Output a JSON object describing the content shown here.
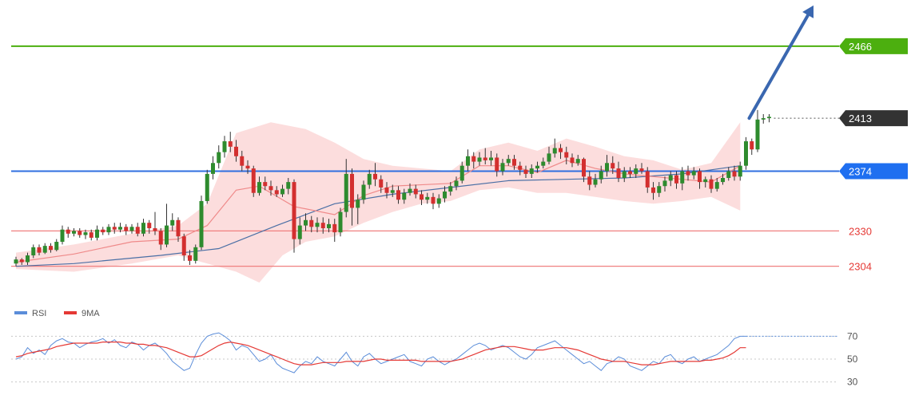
{
  "chart_data": {
    "type": "candlestick",
    "ylim": [
      2285,
      2500
    ],
    "levels": [
      {
        "name": "resistance-green",
        "value": 2466,
        "label": "2466",
        "color": "#4caf0f",
        "badge_color": "#4caf0f",
        "text_color": "#ffffff",
        "style": "solid"
      },
      {
        "name": "current-price",
        "value": 2413,
        "label": "2413",
        "color": "#555555",
        "badge_color": "#333333",
        "text_color": "#ffffff",
        "style": "dotted"
      },
      {
        "name": "pivot-blue",
        "value": 2374,
        "label": "2374",
        "color": "#2f6fe0",
        "badge_color": "#1f6ff0",
        "text_color": "#ffffff",
        "style": "solid"
      },
      {
        "name": "support-1",
        "value": 2330,
        "label": "2330",
        "color": "#f08080",
        "text_color": "#e53935",
        "style": "solid"
      },
      {
        "name": "support-2",
        "value": 2304,
        "label": "2304",
        "color": "#f08080",
        "text_color": "#e53935",
        "style": "solid"
      }
    ],
    "colors": {
      "up": "#2e8b2e",
      "down": "#d32f2f",
      "wick": "#333333",
      "band": "#fbd4d4",
      "ma_slow": "#4a6fa5",
      "ma_fast": "#ef8a8a",
      "arrow": "#3a67b0"
    },
    "candles": [
      [
        2306,
        2309,
        2304,
        2311
      ],
      [
        2309,
        2307,
        2305,
        2310
      ],
      [
        2307,
        2312,
        2305,
        2314
      ],
      [
        2312,
        2318,
        2310,
        2320
      ],
      [
        2318,
        2314,
        2312,
        2320
      ],
      [
        2314,
        2319,
        2313,
        2321
      ],
      [
        2319,
        2316,
        2314,
        2321
      ],
      [
        2316,
        2322,
        2315,
        2324
      ],
      [
        2322,
        2331,
        2320,
        2334
      ],
      [
        2331,
        2328,
        2325,
        2333
      ],
      [
        2328,
        2330,
        2326,
        2332
      ],
      [
        2330,
        2327,
        2325,
        2332
      ],
      [
        2327,
        2329,
        2324,
        2331
      ],
      [
        2329,
        2325,
        2323,
        2331
      ],
      [
        2325,
        2331,
        2323,
        2334
      ],
      [
        2331,
        2329,
        2327,
        2333
      ],
      [
        2329,
        2333,
        2327,
        2335
      ],
      [
        2333,
        2331,
        2328,
        2336
      ],
      [
        2331,
        2333,
        2329,
        2336
      ],
      [
        2333,
        2330,
        2327,
        2335
      ],
      [
        2330,
        2333,
        2328,
        2335
      ],
      [
        2333,
        2328,
        2326,
        2336
      ],
      [
        2328,
        2336,
        2326,
        2339
      ],
      [
        2336,
        2332,
        2328,
        2338
      ],
      [
        2332,
        2330,
        2327,
        2344
      ],
      [
        2330,
        2320,
        2316,
        2332
      ],
      [
        2320,
        2334,
        2318,
        2350
      ],
      [
        2334,
        2338,
        2330,
        2343
      ],
      [
        2338,
        2326,
        2322,
        2340
      ],
      [
        2326,
        2312,
        2308,
        2328
      ],
      [
        2312,
        2308,
        2305,
        2316
      ],
      [
        2308,
        2318,
        2306,
        2320
      ],
      [
        2318,
        2352,
        2316,
        2356
      ],
      [
        2352,
        2372,
        2350,
        2375
      ],
      [
        2372,
        2380,
        2368,
        2385
      ],
      [
        2380,
        2388,
        2376,
        2393
      ],
      [
        2388,
        2396,
        2384,
        2400
      ],
      [
        2396,
        2392,
        2388,
        2403
      ],
      [
        2392,
        2385,
        2381,
        2397
      ],
      [
        2385,
        2378,
        2374,
        2389
      ],
      [
        2378,
        2376,
        2372,
        2382
      ],
      [
        2376,
        2358,
        2355,
        2378
      ],
      [
        2358,
        2366,
        2356,
        2370
      ],
      [
        2366,
        2363,
        2360,
        2370
      ],
      [
        2363,
        2360,
        2356,
        2367
      ],
      [
        2360,
        2357,
        2355,
        2363
      ],
      [
        2357,
        2361,
        2355,
        2364
      ],
      [
        2361,
        2366,
        2357,
        2369
      ],
      [
        2366,
        2324,
        2314,
        2368
      ],
      [
        2324,
        2334,
        2320,
        2340
      ],
      [
        2334,
        2338,
        2330,
        2343
      ],
      [
        2338,
        2333,
        2329,
        2341
      ],
      [
        2333,
        2336,
        2329,
        2340
      ],
      [
        2336,
        2332,
        2328,
        2340
      ],
      [
        2332,
        2335,
        2329,
        2339
      ],
      [
        2335,
        2329,
        2322,
        2339
      ],
      [
        2329,
        2344,
        2326,
        2347
      ],
      [
        2344,
        2372,
        2340,
        2383
      ],
      [
        2372,
        2347,
        2334,
        2376
      ],
      [
        2347,
        2353,
        2335,
        2357
      ],
      [
        2353,
        2364,
        2350,
        2367
      ],
      [
        2364,
        2372,
        2361,
        2375
      ],
      [
        2372,
        2368,
        2363,
        2380
      ],
      [
        2368,
        2362,
        2358,
        2371
      ],
      [
        2362,
        2358,
        2354,
        2366
      ],
      [
        2358,
        2360,
        2355,
        2364
      ],
      [
        2360,
        2353,
        2350,
        2363
      ],
      [
        2353,
        2358,
        2350,
        2361
      ],
      [
        2358,
        2361,
        2356,
        2365
      ],
      [
        2361,
        2357,
        2354,
        2364
      ],
      [
        2357,
        2353,
        2349,
        2360
      ],
      [
        2353,
        2355,
        2350,
        2358
      ],
      [
        2355,
        2350,
        2346,
        2358
      ],
      [
        2350,
        2354,
        2347,
        2357
      ],
      [
        2354,
        2359,
        2351,
        2363
      ],
      [
        2359,
        2363,
        2356,
        2366
      ],
      [
        2363,
        2367,
        2360,
        2370
      ],
      [
        2367,
        2378,
        2365,
        2381
      ],
      [
        2378,
        2385,
        2374,
        2390
      ],
      [
        2385,
        2381,
        2376,
        2388
      ],
      [
        2381,
        2384,
        2378,
        2388
      ],
      [
        2384,
        2382,
        2379,
        2391
      ],
      [
        2382,
        2384,
        2378,
        2389
      ],
      [
        2384,
        2374,
        2370,
        2387
      ],
      [
        2374,
        2380,
        2371,
        2383
      ],
      [
        2380,
        2383,
        2378,
        2386
      ],
      [
        2383,
        2378,
        2375,
        2386
      ],
      [
        2378,
        2375,
        2371,
        2381
      ],
      [
        2375,
        2372,
        2369,
        2378
      ],
      [
        2372,
        2376,
        2369,
        2379
      ],
      [
        2376,
        2378,
        2373,
        2381
      ],
      [
        2378,
        2381,
        2376,
        2384
      ],
      [
        2381,
        2387,
        2379,
        2392
      ],
      [
        2387,
        2391,
        2384,
        2398
      ],
      [
        2391,
        2388,
        2383,
        2394
      ],
      [
        2388,
        2384,
        2379,
        2392
      ],
      [
        2384,
        2380,
        2377,
        2387
      ],
      [
        2380,
        2383,
        2378,
        2386
      ],
      [
        2383,
        2370,
        2366,
        2384
      ],
      [
        2370,
        2364,
        2360,
        2374
      ],
      [
        2364,
        2368,
        2362,
        2372
      ],
      [
        2368,
        2374,
        2365,
        2378
      ],
      [
        2374,
        2380,
        2370,
        2386
      ],
      [
        2380,
        2376,
        2372,
        2385
      ],
      [
        2376,
        2369,
        2366,
        2381
      ],
      [
        2369,
        2374,
        2366,
        2377
      ],
      [
        2374,
        2372,
        2369,
        2377
      ],
      [
        2372,
        2376,
        2369,
        2379
      ],
      [
        2376,
        2374,
        2372,
        2380
      ],
      [
        2374,
        2362,
        2358,
        2377
      ],
      [
        2362,
        2358,
        2353,
        2366
      ],
      [
        2358,
        2363,
        2355,
        2366
      ],
      [
        2363,
        2367,
        2359,
        2370
      ],
      [
        2367,
        2371,
        2363,
        2374
      ],
      [
        2371,
        2365,
        2361,
        2374
      ],
      [
        2365,
        2374,
        2360,
        2377
      ],
      [
        2374,
        2371,
        2367,
        2378
      ],
      [
        2371,
        2374,
        2368,
        2377
      ],
      [
        2374,
        2366,
        2361,
        2376
      ],
      [
        2366,
        2368,
        2362,
        2370
      ],
      [
        2368,
        2361,
        2358,
        2371
      ],
      [
        2361,
        2366,
        2359,
        2369
      ],
      [
        2366,
        2369,
        2364,
        2372
      ],
      [
        2369,
        2374,
        2367,
        2377
      ],
      [
        2374,
        2370,
        2367,
        2378
      ],
      [
        2370,
        2378,
        2367,
        2381
      ],
      [
        2378,
        2396,
        2375,
        2399
      ],
      [
        2396,
        2390,
        2386,
        2398
      ],
      [
        2390,
        2412,
        2388,
        2419
      ],
      [
        2412,
        2413,
        2409,
        2416
      ],
      [
        2413,
        2414,
        2410,
        2416
      ]
    ],
    "ma_slow": [
      [
        0,
        2304
      ],
      [
        10,
        2306
      ],
      [
        25,
        2312
      ],
      [
        35,
        2317
      ],
      [
        45,
        2334
      ],
      [
        55,
        2350
      ],
      [
        65,
        2357
      ],
      [
        75,
        2362
      ],
      [
        85,
        2367
      ],
      [
        95,
        2368
      ],
      [
        105,
        2369
      ],
      [
        115,
        2372
      ],
      [
        125,
        2378
      ]
    ],
    "ma_fast": [
      [
        0,
        2307
      ],
      [
        10,
        2313
      ],
      [
        20,
        2322
      ],
      [
        28,
        2324
      ],
      [
        33,
        2334
      ],
      [
        38,
        2360
      ],
      [
        42,
        2363
      ],
      [
        48,
        2348
      ],
      [
        55,
        2342
      ],
      [
        60,
        2356
      ],
      [
        65,
        2363
      ],
      [
        75,
        2365
      ],
      [
        80,
        2378
      ],
      [
        85,
        2378
      ],
      [
        90,
        2373
      ],
      [
        95,
        2382
      ],
      [
        100,
        2376
      ],
      [
        105,
        2372
      ],
      [
        110,
        2370
      ],
      [
        115,
        2368
      ],
      [
        120,
        2366
      ],
      [
        125,
        2378
      ]
    ],
    "band": {
      "upper": [
        [
          0,
          2314
        ],
        [
          10,
          2320
        ],
        [
          20,
          2328
        ],
        [
          28,
          2334
        ],
        [
          33,
          2350
        ],
        [
          38,
          2402
        ],
        [
          44,
          2410
        ],
        [
          50,
          2405
        ],
        [
          55,
          2395
        ],
        [
          60,
          2383
        ],
        [
          65,
          2378
        ],
        [
          75,
          2374
        ],
        [
          80,
          2390
        ],
        [
          85,
          2395
        ],
        [
          90,
          2389
        ],
        [
          95,
          2398
        ],
        [
          100,
          2392
        ],
        [
          105,
          2385
        ],
        [
          110,
          2382
        ],
        [
          115,
          2375
        ],
        [
          120,
          2380
        ],
        [
          125,
          2410
        ]
      ],
      "lower": [
        [
          0,
          2302
        ],
        [
          10,
          2300
        ],
        [
          20,
          2306
        ],
        [
          28,
          2312
        ],
        [
          33,
          2306
        ],
        [
          38,
          2300
        ],
        [
          42,
          2292
        ],
        [
          46,
          2312
        ],
        [
          50,
          2322
        ],
        [
          55,
          2326
        ],
        [
          60,
          2336
        ],
        [
          65,
          2344
        ],
        [
          70,
          2350
        ],
        [
          75,
          2352
        ],
        [
          80,
          2360
        ],
        [
          85,
          2362
        ],
        [
          90,
          2358
        ],
        [
          95,
          2358
        ],
        [
          100,
          2355
        ],
        [
          105,
          2352
        ],
        [
          110,
          2350
        ],
        [
          115,
          2352
        ],
        [
          120,
          2355
        ],
        [
          125,
          2345
        ]
      ]
    },
    "arrow": {
      "from": [
        126,
        2413
      ],
      "to": [
        136,
        2496
      ]
    },
    "legend": [
      {
        "label": "RSI",
        "color": "#5b8dd9"
      },
      {
        "label": "9MA",
        "color": "#e53935"
      }
    ],
    "rsi": {
      "ylim": [
        22,
        78
      ],
      "ticks": [
        "70",
        "50",
        "30"
      ],
      "tick_values": [
        70,
        50,
        30
      ],
      "last_value": 70,
      "rsi_values": [
        50,
        52,
        60,
        55,
        58,
        54,
        62,
        66,
        68,
        65,
        64,
        60,
        63,
        65,
        66,
        68,
        64,
        67,
        62,
        60,
        65,
        63,
        58,
        62,
        64,
        60,
        55,
        48,
        44,
        40,
        42,
        54,
        64,
        70,
        72,
        73,
        70,
        66,
        58,
        62,
        60,
        54,
        48,
        50,
        54,
        46,
        42,
        40,
        38,
        44,
        48,
        46,
        52,
        48,
        46,
        44,
        50,
        56,
        48,
        44,
        52,
        55,
        50,
        46,
        48,
        50,
        52,
        54,
        48,
        46,
        44,
        50,
        52,
        48,
        45,
        48,
        50,
        54,
        58,
        62,
        64,
        62,
        58,
        60,
        62,
        60,
        56,
        52,
        50,
        54,
        60,
        62,
        64,
        66,
        62,
        58,
        54,
        50,
        46,
        48,
        44,
        40,
        46,
        48,
        52,
        50,
        44,
        42,
        40,
        44,
        48,
        46,
        52,
        54,
        48,
        46,
        50,
        52,
        48,
        50,
        52,
        54,
        58,
        62,
        68,
        70,
        70
      ],
      "ma_values": [
        52,
        53,
        55,
        56,
        57,
        58,
        59,
        61,
        62,
        63,
        64,
        64,
        64,
        64,
        64,
        65,
        65,
        65,
        65,
        64,
        64,
        63,
        63,
        62,
        62,
        61,
        60,
        58,
        56,
        54,
        52,
        52,
        53,
        56,
        59,
        62,
        64,
        65,
        64,
        63,
        62,
        60,
        58,
        56,
        54,
        52,
        50,
        48,
        46,
        45,
        45,
        45,
        46,
        47,
        47,
        47,
        47,
        48,
        48,
        48,
        48,
        49,
        50,
        50,
        49,
        49,
        49,
        49,
        49,
        49,
        48,
        48,
        48,
        48,
        48,
        48,
        49,
        50,
        52,
        54,
        56,
        58,
        59,
        60,
        61,
        61,
        61,
        60,
        59,
        58,
        58,
        58,
        59,
        60,
        60,
        60,
        59,
        58,
        56,
        54,
        52,
        50,
        49,
        48,
        48,
        48,
        47,
        46,
        45,
        45,
        45,
        46,
        47,
        48,
        48,
        48,
        48,
        48,
        48,
        49,
        49,
        50,
        51,
        53,
        56,
        60,
        60
      ]
    }
  }
}
